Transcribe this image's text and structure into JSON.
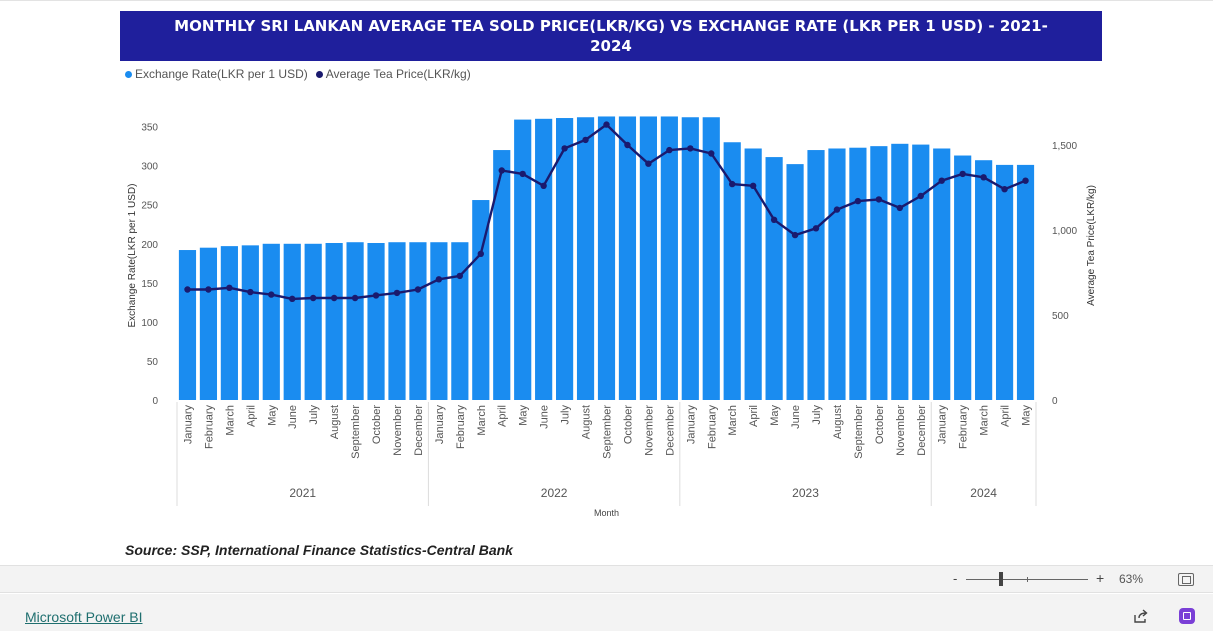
{
  "title": "MONTHLY SRI LANKAN AVERAGE TEA SOLD PRICE(LKR/KG) VS EXCHANGE RATE (LKR PER 1 USD) - 2021-2024",
  "legend": {
    "series1": "Exchange Rate(LKR per 1 USD)",
    "series2": "Average Tea Price(LKR/kg)"
  },
  "source": "Source: SSP, International Finance Statistics-Central Bank",
  "zoom": {
    "minus": "-",
    "plus": "+",
    "value": "63%"
  },
  "footer": {
    "link": "Microsoft Power BI"
  },
  "colors": {
    "bar": "#1a8cf0",
    "line": "#1a1a6e",
    "title_bg": "#1f1f9c"
  },
  "icons": {
    "share": "share-icon",
    "fit": "fit-to-page-icon",
    "expand": "open-in-new-icon"
  },
  "chart_data": {
    "type": "bar",
    "xlabel": "Month",
    "ylabel": "Exchange Rate(LKR per 1 USD)",
    "y2label": "Average Tea Price(LKR/kg)",
    "ylim": [
      0,
      370
    ],
    "y2lim": [
      0,
      1700
    ],
    "yticks": [
      "0",
      "50",
      "100",
      "150",
      "200",
      "250",
      "300",
      "350"
    ],
    "y2ticks": [
      "0",
      "500",
      "1,000",
      "1,500"
    ],
    "grid": false,
    "legend_position": "top-left",
    "categories": [
      "January",
      "February",
      "March",
      "April",
      "May",
      "June",
      "July",
      "August",
      "September",
      "October",
      "November",
      "December",
      "January",
      "February",
      "March",
      "April",
      "May",
      "June",
      "July",
      "August",
      "September",
      "October",
      "November",
      "December",
      "January",
      "February",
      "March",
      "April",
      "May",
      "June",
      "July",
      "August",
      "September",
      "October",
      "November",
      "December",
      "January",
      "February",
      "March",
      "April",
      "May"
    ],
    "groups": [
      {
        "label": "2021",
        "count": 12
      },
      {
        "label": "2022",
        "count": 12
      },
      {
        "label": "2023",
        "count": 12
      },
      {
        "label": "2024",
        "count": 5
      }
    ],
    "series": [
      {
        "name": "Exchange Rate(LKR per 1 USD)",
        "type": "bar",
        "axis": "left",
        "values": [
          192,
          195,
          197,
          198,
          200,
          200,
          200,
          201,
          202,
          201,
          202,
          202,
          202,
          202,
          256,
          320,
          359,
          360,
          361,
          362,
          363,
          363,
          363,
          363,
          362,
          362,
          330,
          322,
          311,
          302,
          320,
          322,
          323,
          325,
          328,
          327,
          322,
          313,
          307,
          301,
          301
        ]
      },
      {
        "name": "Average Tea Price(LKR/kg)",
        "type": "line",
        "axis": "right",
        "values": [
          650,
          650,
          660,
          635,
          620,
          595,
          600,
          600,
          600,
          615,
          630,
          650,
          710,
          730,
          860,
          1350,
          1330,
          1260,
          1480,
          1530,
          1620,
          1500,
          1390,
          1470,
          1480,
          1450,
          1270,
          1260,
          1060,
          970,
          1010,
          1120,
          1170,
          1180,
          1130,
          1200,
          1290,
          1330,
          1310,
          1240,
          1290
        ]
      }
    ]
  }
}
